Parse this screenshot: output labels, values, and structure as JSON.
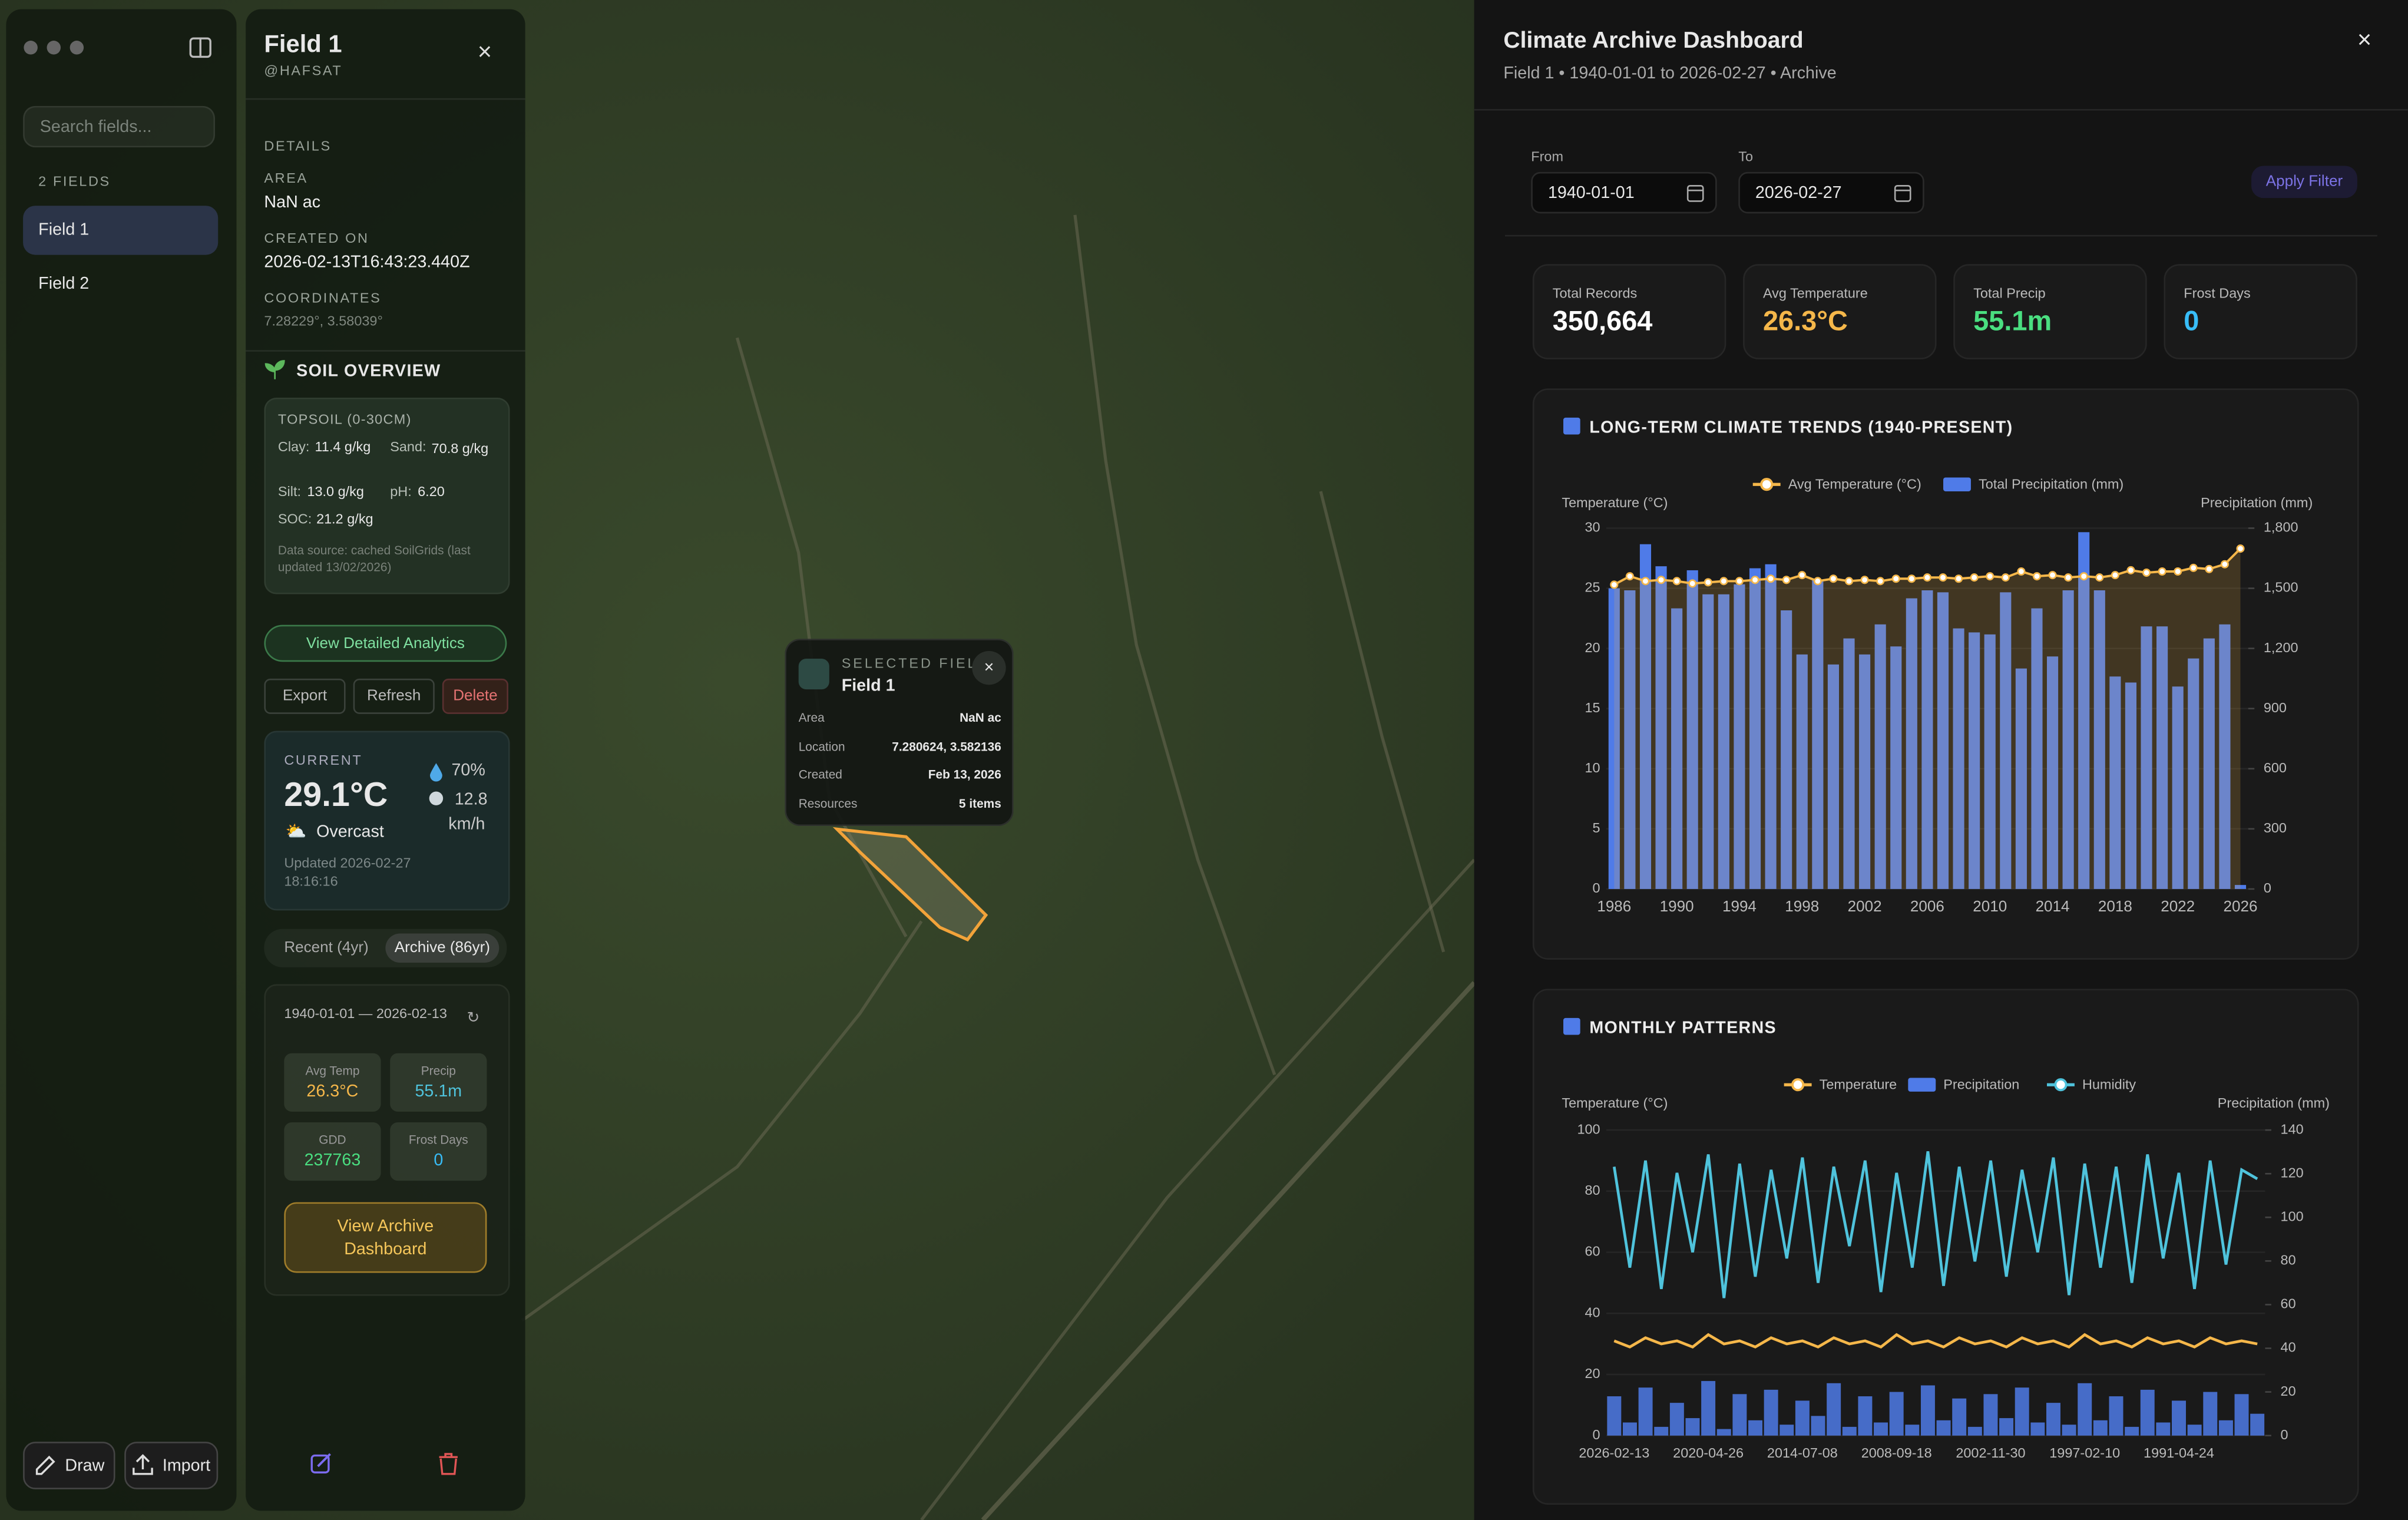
{
  "sidebar": {
    "search_placeholder": "Search fields...",
    "count_label": "2 FIELDS",
    "fields": [
      "Field 1",
      "Field 2"
    ],
    "buttons": [
      "Draw",
      "Import"
    ]
  },
  "field_panel": {
    "title": "Field 1",
    "subtitle": "@HAFSAT",
    "details_heading": "DETAILS",
    "area_label": "AREA",
    "area": "NaN ac",
    "created_label": "CREATED ON",
    "created": "2026-02-13T16:43:23.440Z",
    "coords_label": "COORDINATES",
    "coords": "7.28229°, 3.58039°",
    "soil_heading": "SOIL OVERVIEW",
    "topsoil_heading": "TOPSOIL (0-30CM)",
    "soil": [
      {
        "label": "Clay:",
        "value": "11.4 g/kg"
      },
      {
        "label": "Sand:",
        "value": "70.8 g/kg"
      },
      {
        "label": "Silt:",
        "value": "13.0 g/kg"
      },
      {
        "label": "pH:",
        "value": "6.20"
      },
      {
        "label": "SOC:",
        "value": "21.2 g/kg"
      }
    ],
    "soil_source": "Data source: cached SoilGrids (last updated 13/02/2026)",
    "analytics_button": "View Detailed Analytics",
    "actions": [
      "Export",
      "Refresh",
      "Delete"
    ],
    "weather": {
      "label": "CURRENT",
      "temperature": "29.1°C",
      "condition": "Overcast",
      "humidity": "70%",
      "wind": "12.8",
      "wind_unit": "km/h",
      "updated": "Updated 2026-02-27 18:16:16"
    },
    "tabs": [
      "Recent (4yr)",
      "Archive (86yr)"
    ],
    "archive": {
      "range": "1940-01-01 — 2026-02-13",
      "stats": [
        {
          "label": "Avg Temp",
          "value": "26.3°C"
        },
        {
          "label": "Precip",
          "value": "55.1m"
        },
        {
          "label": "GDD",
          "value": "237763"
        },
        {
          "label": "Frost Days",
          "value": "0"
        }
      ],
      "button": "View Archive Dashboard"
    }
  },
  "popup": {
    "heading": "SELECTED FIELD",
    "name": "Field 1",
    "rows": [
      {
        "label": "Area",
        "value": "NaN ac"
      },
      {
        "label": "Location",
        "value": "7.280624, 3.582136"
      },
      {
        "label": "Created",
        "value": "Feb 13, 2026"
      },
      {
        "label": "Resources",
        "value": "5 items"
      }
    ]
  },
  "dashboard": {
    "title": "Climate Archive Dashboard",
    "subtitle": "Field 1 • 1940-01-01 to 2026-02-27 • Archive",
    "from_label": "From",
    "from": "1940-01-01",
    "to_label": "To",
    "to": "2026-02-27",
    "apply": "Apply Filter",
    "stats": [
      {
        "label": "Total Records",
        "value": "350,664"
      },
      {
        "label": "Avg Temperature",
        "value": "26.3°C"
      },
      {
        "label": "Total Precip",
        "value": "55.1m"
      },
      {
        "label": "Frost Days",
        "value": "0"
      }
    ]
  },
  "chart_data": [
    {
      "type": "bar",
      "title": "LONG-TERM CLIMATE TRENDS (1940-PRESENT)",
      "y_label": "Temperature (°C)",
      "y2_label": "Precipitation (mm)",
      "categories": [
        "1986",
        null,
        null,
        null,
        "1990",
        null,
        null,
        null,
        "1994",
        null,
        null,
        null,
        "1998",
        null,
        null,
        null,
        "2002",
        null,
        null,
        null,
        "2006",
        null,
        null,
        null,
        "2010",
        null,
        null,
        null,
        "2014",
        null,
        null,
        null,
        "2018",
        null,
        null,
        null,
        "2022",
        null,
        null,
        null,
        "2026"
      ],
      "series": [
        {
          "name": "Avg Temperature (°C)",
          "type": "line",
          "color": "#f5b74a",
          "axis": "y",
          "values": [
            25.3,
            26.0,
            25.6,
            25.7,
            25.6,
            25.4,
            25.5,
            25.6,
            25.6,
            25.7,
            25.8,
            25.7,
            26.1,
            25.6,
            25.8,
            25.6,
            25.7,
            25.6,
            25.8,
            25.8,
            25.9,
            25.9,
            25.8,
            25.9,
            26.0,
            25.9,
            26.4,
            26.0,
            26.1,
            25.9,
            26.0,
            25.9,
            26.1,
            26.5,
            26.3,
            26.4,
            26.4,
            26.7,
            26.6,
            27.0,
            28.3
          ]
        },
        {
          "name": "Total Precipitation (mm)",
          "type": "bar",
          "color": "#4f7be8",
          "axis": "y2",
          "values": [
            1500,
            1490,
            1720,
            1610,
            1400,
            1590,
            1470,
            1470,
            1520,
            1600,
            1620,
            1390,
            1170,
            1540,
            1120,
            1250,
            1170,
            1320,
            1210,
            1450,
            1490,
            1480,
            1300,
            1280,
            1270,
            1480,
            1100,
            1400,
            1160,
            1490,
            1780,
            1490,
            1060,
            1030,
            1310,
            1310,
            1010,
            1150,
            1250,
            1320,
            20
          ]
        }
      ],
      "ylim": [
        0,
        30
      ],
      "yticks": [
        0,
        5,
        10,
        15,
        20,
        25,
        30
      ],
      "y2lim": [
        0,
        1800
      ],
      "y2ticks": [
        0,
        300,
        600,
        900,
        {
          "value": 1200,
          "label": "1,200"
        },
        {
          "value": 1500,
          "label": "1,500"
        },
        {
          "value": 1800,
          "label": "1,800"
        }
      ]
    },
    {
      "type": "line",
      "title": "MONTHLY PATTERNS",
      "y_label": "Temperature (°C)",
      "y2_label": "Precipitation (mm)",
      "categories": [
        "2026-02-13",
        null,
        null,
        null,
        null,
        null,
        "2020-04-26",
        null,
        null,
        null,
        null,
        null,
        "2014-07-08",
        null,
        null,
        null,
        null,
        null,
        "2008-09-18",
        null,
        null,
        null,
        null,
        null,
        "2002-11-30",
        null,
        null,
        null,
        null,
        null,
        "1997-02-10",
        null,
        null,
        null,
        null,
        null,
        "1991-04-24",
        null,
        null,
        null,
        null,
        null
      ],
      "series": [
        {
          "name": "Temperature",
          "type": "line",
          "color": "#f5b74a",
          "axis": "y",
          "values": [
            31,
            29,
            32,
            30,
            31,
            29,
            33,
            30,
            31,
            29,
            32,
            30,
            31,
            29,
            32,
            30,
            31,
            29,
            33,
            30,
            31,
            29,
            32,
            30,
            31,
            29,
            32,
            30,
            31,
            29,
            33,
            30,
            31,
            29,
            32,
            30,
            31,
            29,
            32,
            30,
            31,
            30
          ]
        },
        {
          "name": "Precipitation",
          "type": "bar",
          "color": "#4f7be8",
          "axis": "y2",
          "values": [
            18,
            6,
            22,
            4,
            15,
            8,
            25,
            3,
            19,
            7,
            21,
            5,
            16,
            9,
            24,
            4,
            18,
            6,
            20,
            5,
            23,
            7,
            17,
            4,
            19,
            8,
            22,
            6,
            15,
            5,
            24,
            7,
            18,
            4,
            21,
            6,
            16,
            5,
            20,
            7,
            19,
            10
          ]
        },
        {
          "name": "Humidity",
          "type": "line",
          "color": "#4fc3dc",
          "axis": "y",
          "values": [
            88,
            55,
            90,
            48,
            86,
            60,
            92,
            45,
            89,
            52,
            87,
            58,
            91,
            50,
            88,
            62,
            90,
            47,
            86,
            55,
            93,
            49,
            88,
            57,
            90,
            52,
            87,
            60,
            91,
            46,
            89,
            55,
            88,
            50,
            92,
            58,
            86,
            48,
            90,
            56,
            87,
            84
          ]
        }
      ],
      "ylim": [
        0,
        100
      ],
      "yticks": [
        0,
        20,
        40,
        60,
        80,
        100
      ],
      "y2lim": [
        0,
        140
      ],
      "y2ticks": [
        0,
        20,
        40,
        60,
        80,
        100,
        120,
        140
      ]
    }
  ]
}
